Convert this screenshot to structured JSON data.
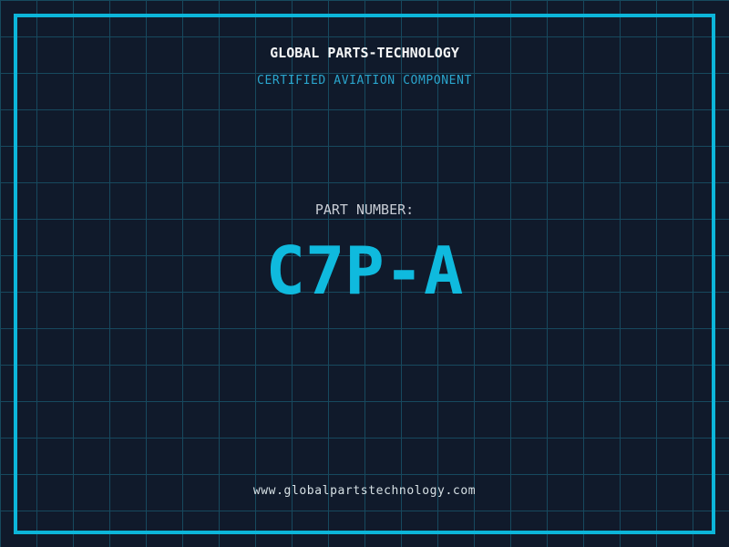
{
  "brand": {
    "title": "GLOBAL PARTS-TECHNOLOGY",
    "subtitle": "CERTIFIED AVIATION COMPONENT"
  },
  "part": {
    "label": "PART NUMBER:",
    "number": "C7P-A"
  },
  "footer": {
    "website": "www.globalpartstechnology.com"
  },
  "colors": {
    "background": "#101a2b",
    "grid_line": "#17495e",
    "frame_border": "#0cb6da",
    "part_number_cyan": "#0fbade",
    "subtitle_cyan": "#2aa5cd",
    "title_white": "#f5f6f7",
    "label_gray": "#c8cdd5",
    "website_text": "#d6e0e4"
  }
}
